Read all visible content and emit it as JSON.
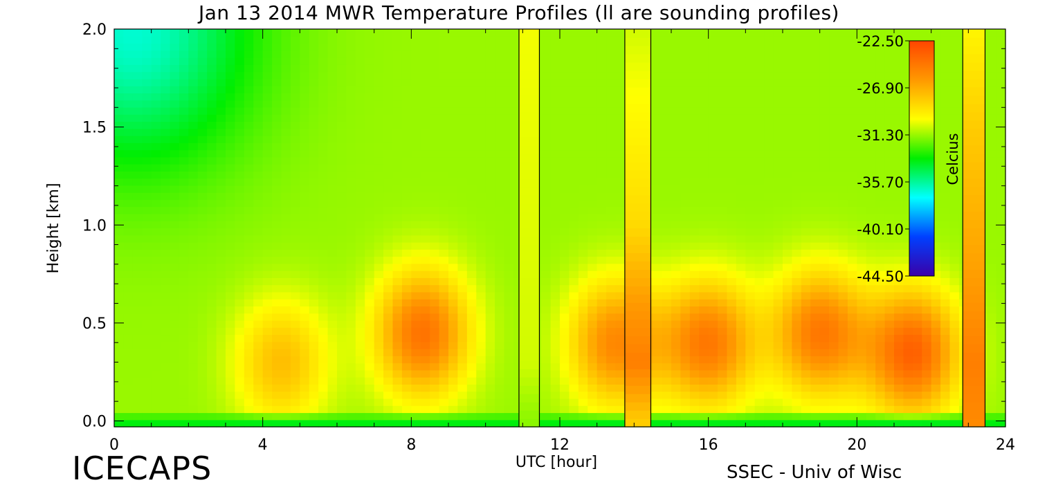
{
  "header": {
    "title": "Jan 13 2014 MWR Temperature Profiles (ll are sounding profiles)"
  },
  "footer": {
    "watermark": "ICECAPS",
    "credit": "SSEC - Univ of Wisc"
  },
  "colors": {
    "background": "#ffffff",
    "axis": "#000000",
    "colormap": [
      "#3a00a8",
      "#0040ff",
      "#00ffff",
      "#00ee00",
      "#ffff00",
      "#ff9900",
      "#ff4500"
    ]
  },
  "chart_data": {
    "type": "heatmap",
    "title": "Jan 13 2014 MWR Temperature Profiles (ll are sounding profiles)",
    "xlabel": "UTC [hour]",
    "ylabel": "Height [km]",
    "xlim": [
      0,
      24
    ],
    "ylim": [
      -0.03,
      2.0
    ],
    "xticks": [
      0,
      4,
      8,
      12,
      16,
      20,
      24
    ],
    "xtick_labels": [
      "0",
      "4",
      "8",
      "12",
      "16",
      "20",
      "24"
    ],
    "yticks": [
      0.0,
      0.5,
      1.0,
      1.5,
      2.0
    ],
    "ytick_labels": [
      "0.0",
      "0.5",
      "1.0",
      "1.5",
      "2.0"
    ],
    "colorbar": {
      "label": "Celcius",
      "range": [
        -44.5,
        -22.5
      ],
      "ticks": [
        "-22.50",
        "-26.90",
        "-31.30",
        "-35.70",
        "-40.10",
        "-44.50"
      ],
      "placement": "top-right"
    },
    "grid": false,
    "field": {
      "background_temp": -31.3,
      "cold_region": {
        "hour": 0.5,
        "height": 2.0,
        "temp": -36.5
      },
      "warm_features": [
        {
          "hour": 4.5,
          "height": 0.3,
          "temp": -27.5
        },
        {
          "hour": 8.3,
          "height": 0.45,
          "temp": -24.5
        },
        {
          "hour": 13.5,
          "height": 0.4,
          "temp": -25.5
        },
        {
          "hour": 16.0,
          "height": 0.4,
          "temp": -24.8
        },
        {
          "hour": 19.0,
          "height": 0.45,
          "temp": -24.8
        },
        {
          "hour": 21.5,
          "height": 0.35,
          "temp": -23.8
        }
      ],
      "surface_layer": {
        "height": 0.0,
        "temp": -33.5
      }
    },
    "sounding_profiles": [
      {
        "start_hour": 10.9,
        "end_hour": 11.45,
        "profile": [
          {
            "height": 0.0,
            "temp": -31.5
          },
          {
            "height": 0.3,
            "temp": -30.5
          },
          {
            "height": 2.0,
            "temp": -30.0
          }
        ]
      },
      {
        "start_hour": 13.75,
        "end_hour": 14.45,
        "profile": [
          {
            "height": 0.0,
            "temp": -28.0
          },
          {
            "height": 0.3,
            "temp": -25.0
          },
          {
            "height": 0.6,
            "temp": -26.2
          },
          {
            "height": 1.0,
            "temp": -28.5
          },
          {
            "height": 2.0,
            "temp": -30.5
          }
        ]
      },
      {
        "start_hour": 22.85,
        "end_hour": 23.45,
        "profile": [
          {
            "height": 0.0,
            "temp": -25.5
          },
          {
            "height": 0.3,
            "temp": -25.0
          },
          {
            "height": 0.8,
            "temp": -26.5
          },
          {
            "height": 1.5,
            "temp": -28.0
          },
          {
            "height": 2.0,
            "temp": -29.5
          }
        ]
      }
    ]
  }
}
